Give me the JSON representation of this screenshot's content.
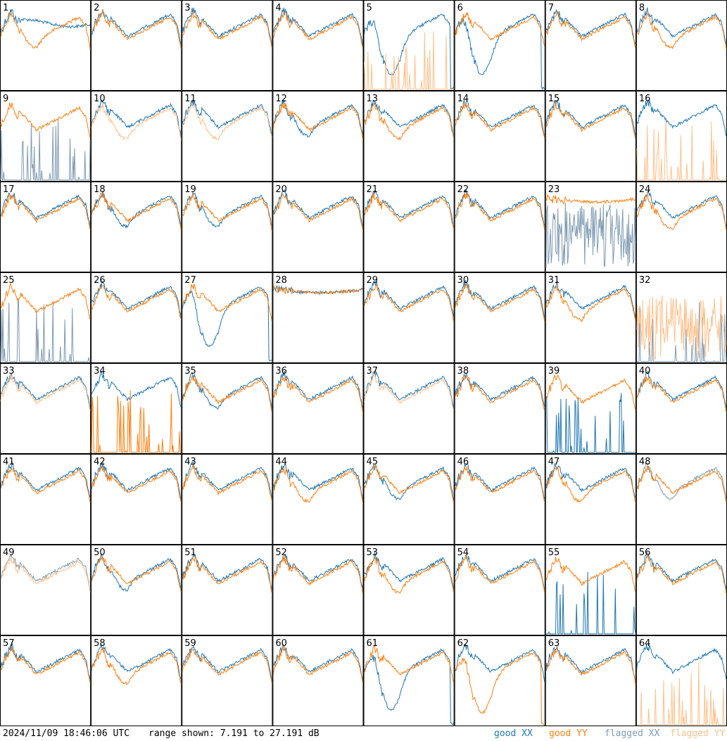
{
  "footer": {
    "timestamp": "2024/11/09 18:46:06 UTC",
    "range_text": "range shown: 7.191 to 27.191 dB"
  },
  "colors": {
    "good_xx": "#1f77b4",
    "good_yy": "#ff7f0e",
    "flagged_xx": "#7f9bb3",
    "flagged_yy": "#ffc08a"
  },
  "legend": [
    {
      "label": "good XX",
      "color": "#1f77b4"
    },
    {
      "label": "good YY",
      "color": "#ff7f0e"
    },
    {
      "label": "flagged XX",
      "color": "#7f9bb3"
    },
    {
      "label": "flagged YY",
      "color": "#ffc08a"
    }
  ],
  "chart_data": {
    "type": "line",
    "layout": "8x8 small multiples",
    "ylim": [
      7.191,
      27.191
    ],
    "yunit": "dB",
    "panels": [
      {
        "id": "1",
        "xx": "good",
        "yy": "good",
        "xx_shape": "plateau",
        "yy_shape": "dip"
      },
      {
        "id": "2",
        "xx": "good",
        "yy": "good",
        "xx_shape": "normal",
        "yy_shape": "normal"
      },
      {
        "id": "3",
        "xx": "good",
        "yy": "good",
        "xx_shape": "normal",
        "yy_shape": "normal"
      },
      {
        "id": "4",
        "xx": "good",
        "yy": "good",
        "xx_shape": "normal",
        "yy_shape": "normal"
      },
      {
        "id": "5",
        "xx": "good",
        "yy": "flagged",
        "xx_shape": "deepdip",
        "yy_shape": "spikes"
      },
      {
        "id": "6",
        "xx": "good",
        "yy": "good",
        "xx_shape": "deepdip",
        "yy_shape": "normal"
      },
      {
        "id": "7",
        "xx": "good",
        "yy": "good",
        "xx_shape": "normal",
        "yy_shape": "normal"
      },
      {
        "id": "8",
        "xx": "good",
        "yy": "good",
        "xx_shape": "normal",
        "yy_shape": "dip"
      },
      {
        "id": "9",
        "xx": "flagged",
        "yy": "good",
        "xx_shape": "spikes",
        "yy_shape": "normal"
      },
      {
        "id": "10",
        "xx": "good",
        "yy": "flagged",
        "xx_shape": "normal",
        "yy_shape": "dip"
      },
      {
        "id": "11",
        "xx": "good",
        "yy": "flagged",
        "xx_shape": "normal",
        "yy_shape": "dip"
      },
      {
        "id": "12",
        "xx": "good",
        "yy": "good",
        "xx_shape": "dip",
        "yy_shape": "normal"
      },
      {
        "id": "13",
        "xx": "good",
        "yy": "good",
        "xx_shape": "normal",
        "yy_shape": "dip"
      },
      {
        "id": "14",
        "xx": "good",
        "yy": "good",
        "xx_shape": "normal",
        "yy_shape": "normal"
      },
      {
        "id": "15",
        "xx": "good",
        "yy": "good",
        "xx_shape": "normal",
        "yy_shape": "normal"
      },
      {
        "id": "16",
        "xx": "good",
        "yy": "flagged",
        "xx_shape": "normal",
        "yy_shape": "spikes"
      },
      {
        "id": "17",
        "xx": "good",
        "yy": "good",
        "xx_shape": "normal",
        "yy_shape": "normal"
      },
      {
        "id": "18",
        "xx": "good",
        "yy": "good",
        "xx_shape": "dip",
        "yy_shape": "normal"
      },
      {
        "id": "19",
        "xx": "good",
        "yy": "good",
        "xx_shape": "dip",
        "yy_shape": "normal"
      },
      {
        "id": "20",
        "xx": "good",
        "yy": "good",
        "xx_shape": "normal",
        "yy_shape": "normal"
      },
      {
        "id": "21",
        "xx": "good",
        "yy": "good",
        "xx_shape": "normal",
        "yy_shape": "normal"
      },
      {
        "id": "22",
        "xx": "good",
        "yy": "good",
        "xx_shape": "normal",
        "yy_shape": "normal"
      },
      {
        "id": "23",
        "xx": "flagged",
        "yy": "good",
        "xx_shape": "noisy",
        "yy_shape": "flat"
      },
      {
        "id": "24",
        "xx": "good",
        "yy": "good",
        "xx_shape": "normal",
        "yy_shape": "dip"
      },
      {
        "id": "25",
        "xx": "flagged",
        "yy": "good",
        "xx_shape": "spikes",
        "yy_shape": "normal"
      },
      {
        "id": "26",
        "xx": "good",
        "yy": "good",
        "xx_shape": "normal",
        "yy_shape": "normal"
      },
      {
        "id": "27",
        "xx": "good",
        "yy": "good",
        "xx_shape": "deepdip",
        "yy_shape": "normal"
      },
      {
        "id": "28",
        "xx": "good",
        "yy": "good",
        "xx_shape": "flat",
        "yy_shape": "flat"
      },
      {
        "id": "29",
        "xx": "good",
        "yy": "good",
        "xx_shape": "normal",
        "yy_shape": "normal"
      },
      {
        "id": "30",
        "xx": "good",
        "yy": "good",
        "xx_shape": "normal",
        "yy_shape": "normal"
      },
      {
        "id": "31",
        "xx": "good",
        "yy": "good",
        "xx_shape": "normal",
        "yy_shape": "dip"
      },
      {
        "id": "32",
        "xx": "flagged",
        "yy": "flagged",
        "xx_shape": "spikes",
        "yy_shape": "noisy"
      },
      {
        "id": "33",
        "xx": "good",
        "yy": "flagged",
        "xx_shape": "normal",
        "yy_shape": "normal"
      },
      {
        "id": "34",
        "xx": "good",
        "yy": "good",
        "xx_shape": "normal",
        "yy_shape": "spikes"
      },
      {
        "id": "35",
        "xx": "good",
        "yy": "good",
        "xx_shape": "dip",
        "yy_shape": "normal"
      },
      {
        "id": "36",
        "xx": "good",
        "yy": "good",
        "xx_shape": "normal",
        "yy_shape": "normal"
      },
      {
        "id": "37",
        "xx": "good",
        "yy": "flagged",
        "xx_shape": "normal",
        "yy_shape": "normal"
      },
      {
        "id": "38",
        "xx": "good",
        "yy": "good",
        "xx_shape": "normal",
        "yy_shape": "normal"
      },
      {
        "id": "39",
        "xx": "good",
        "yy": "good",
        "xx_shape": "spikes",
        "yy_shape": "normal"
      },
      {
        "id": "40",
        "xx": "good",
        "yy": "good",
        "xx_shape": "normal",
        "yy_shape": "normal"
      },
      {
        "id": "41",
        "xx": "good",
        "yy": "good",
        "xx_shape": "normal",
        "yy_shape": "normal"
      },
      {
        "id": "42",
        "xx": "good",
        "yy": "good",
        "xx_shape": "normal",
        "yy_shape": "normal"
      },
      {
        "id": "43",
        "xx": "good",
        "yy": "good",
        "xx_shape": "normal",
        "yy_shape": "normal"
      },
      {
        "id": "44",
        "xx": "good",
        "yy": "good",
        "xx_shape": "normal",
        "yy_shape": "dip"
      },
      {
        "id": "45",
        "xx": "good",
        "yy": "good",
        "xx_shape": "dip",
        "yy_shape": "normal"
      },
      {
        "id": "46",
        "xx": "good",
        "yy": "good",
        "xx_shape": "normal",
        "yy_shape": "normal"
      },
      {
        "id": "47",
        "xx": "good",
        "yy": "good",
        "xx_shape": "normal",
        "yy_shape": "dip"
      },
      {
        "id": "48",
        "xx": "flagged",
        "yy": "good",
        "xx_shape": "dip",
        "yy_shape": "normal"
      },
      {
        "id": "49",
        "xx": "flagged",
        "yy": "flagged",
        "xx_shape": "normal",
        "yy_shape": "normal"
      },
      {
        "id": "50",
        "xx": "good",
        "yy": "good",
        "xx_shape": "dip",
        "yy_shape": "normal"
      },
      {
        "id": "51",
        "xx": "good",
        "yy": "good",
        "xx_shape": "normal",
        "yy_shape": "normal"
      },
      {
        "id": "52",
        "xx": "good",
        "yy": "good",
        "xx_shape": "normal",
        "yy_shape": "normal"
      },
      {
        "id": "53",
        "xx": "good",
        "yy": "good",
        "xx_shape": "normal",
        "yy_shape": "dip"
      },
      {
        "id": "54",
        "xx": "good",
        "yy": "good",
        "xx_shape": "normal",
        "yy_shape": "normal"
      },
      {
        "id": "55",
        "xx": "good",
        "yy": "good",
        "xx_shape": "spikes",
        "yy_shape": "normal"
      },
      {
        "id": "56",
        "xx": "good",
        "yy": "good",
        "xx_shape": "normal",
        "yy_shape": "normal"
      },
      {
        "id": "57",
        "xx": "good",
        "yy": "good",
        "xx_shape": "normal",
        "yy_shape": "normal"
      },
      {
        "id": "58",
        "xx": "good",
        "yy": "good",
        "xx_shape": "normal",
        "yy_shape": "dip"
      },
      {
        "id": "59",
        "xx": "good",
        "yy": "good",
        "xx_shape": "normal",
        "yy_shape": "normal"
      },
      {
        "id": "60",
        "xx": "good",
        "yy": "good",
        "xx_shape": "normal",
        "yy_shape": "normal"
      },
      {
        "id": "61",
        "xx": "good",
        "yy": "good",
        "xx_shape": "deepdip",
        "yy_shape": "normal"
      },
      {
        "id": "62",
        "xx": "good",
        "yy": "good",
        "xx_shape": "normal",
        "yy_shape": "deepdip"
      },
      {
        "id": "63",
        "xx": "good",
        "yy": "good",
        "xx_shape": "normal",
        "yy_shape": "normal"
      },
      {
        "id": "64",
        "xx": "good",
        "yy": "flagged",
        "xx_shape": "normal",
        "yy_shape": "spikes"
      }
    ]
  }
}
